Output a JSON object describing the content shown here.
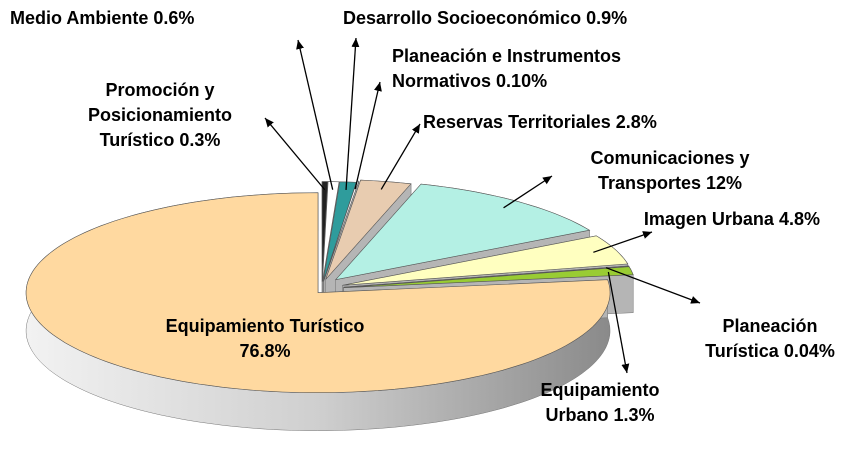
{
  "chart_data": {
    "type": "pie",
    "categories": [
      "Promoción y Posicionamiento Turístico",
      "Medio Ambiente",
      "Desarrollo Socioeconómico",
      "Planeación e Instrumentos Normativos",
      "Reservas Territoriales",
      "Comunicaciones y Transportes",
      "Imagen Urbana",
      "Planeación Turística",
      "Equipamiento Urbano",
      "Equipamiento Turístico"
    ],
    "values": [
      0.3,
      0.6,
      0.9,
      0.1,
      2.8,
      12,
      4.8,
      0.04,
      1.3,
      76.8
    ],
    "value_labels": [
      "0.3%",
      "0.6%",
      "0.9%",
      "0.10%",
      "2.8%",
      "12%",
      "4.8%",
      "0.04%",
      "1.3%",
      "76.8%"
    ],
    "colors": [
      "#222222",
      "#ffffff",
      "#2f9c9c",
      "#ffffff",
      "#e8ccb0",
      "#b4f0e4",
      "#ffffc0",
      "#cc33cc",
      "#99cc33",
      "#ffd9a0"
    ]
  }
}
